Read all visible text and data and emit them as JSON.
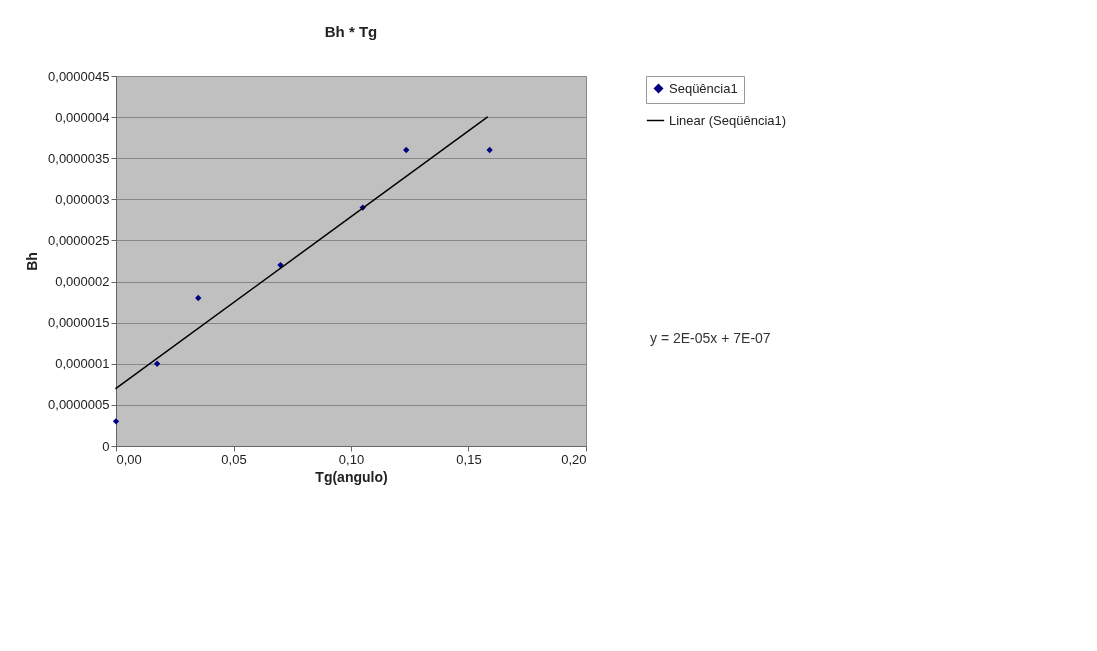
{
  "chart_data": {
    "type": "scatter",
    "title": "Bh * Tg",
    "xlabel": "Tg(angulo)",
    "ylabel": "Bh",
    "xlim": [
      0,
      0.2
    ],
    "xticks": [
      {
        "value": 0,
        "label": "0,00"
      },
      {
        "value": 0.05,
        "label": "0,05"
      },
      {
        "value": 0.1,
        "label": "0,10"
      },
      {
        "value": 0.15,
        "label": "0,15"
      },
      {
        "value": 0.2,
        "label": "0,20"
      }
    ],
    "ylim": [
      0,
      4.5e-06
    ],
    "yticks": [
      0,
      {
        "value": 5e-07,
        "label": "0,0000005"
      },
      {
        "value": 1e-06,
        "label": "0,000001"
      },
      {
        "value": 1.5e-06,
        "label": "0,0000015"
      },
      {
        "value": 2e-06,
        "label": "0,000002"
      },
      {
        "value": 2.5e-06,
        "label": "0,0000025"
      },
      {
        "value": 3e-06,
        "label": "0,000003"
      },
      {
        "value": 3.5e-06,
        "label": "0,0000035"
      },
      {
        "value": 4e-06,
        "label": "0,000004"
      },
      {
        "value": 4.5e-06,
        "label": "0,0000045"
      }
    ],
    "grid": "y",
    "legend": "right",
    "series": [
      {
        "name": "Seqüência1",
        "color": "#000080",
        "marker": "diamond",
        "x": [
          0.0,
          0.0175,
          0.035,
          0.07,
          0.105,
          0.1235,
          0.159
        ],
        "values": [
          3e-07,
          1e-06,
          1.8e-06,
          2.2e-06,
          2.9e-06,
          3.6e-06,
          3.6e-06
        ]
      },
      {
        "type": "line",
        "name": "Linear (Seqüência1)",
        "color": "#000000",
        "marker": "none",
        "line_style": "solid",
        "x": [
          0.0,
          0.158
        ],
        "values": [
          7e-07,
          4e-06
        ]
      }
    ],
    "annotations": [
      "y = 2E-05x + 7E-07"
    ]
  }
}
